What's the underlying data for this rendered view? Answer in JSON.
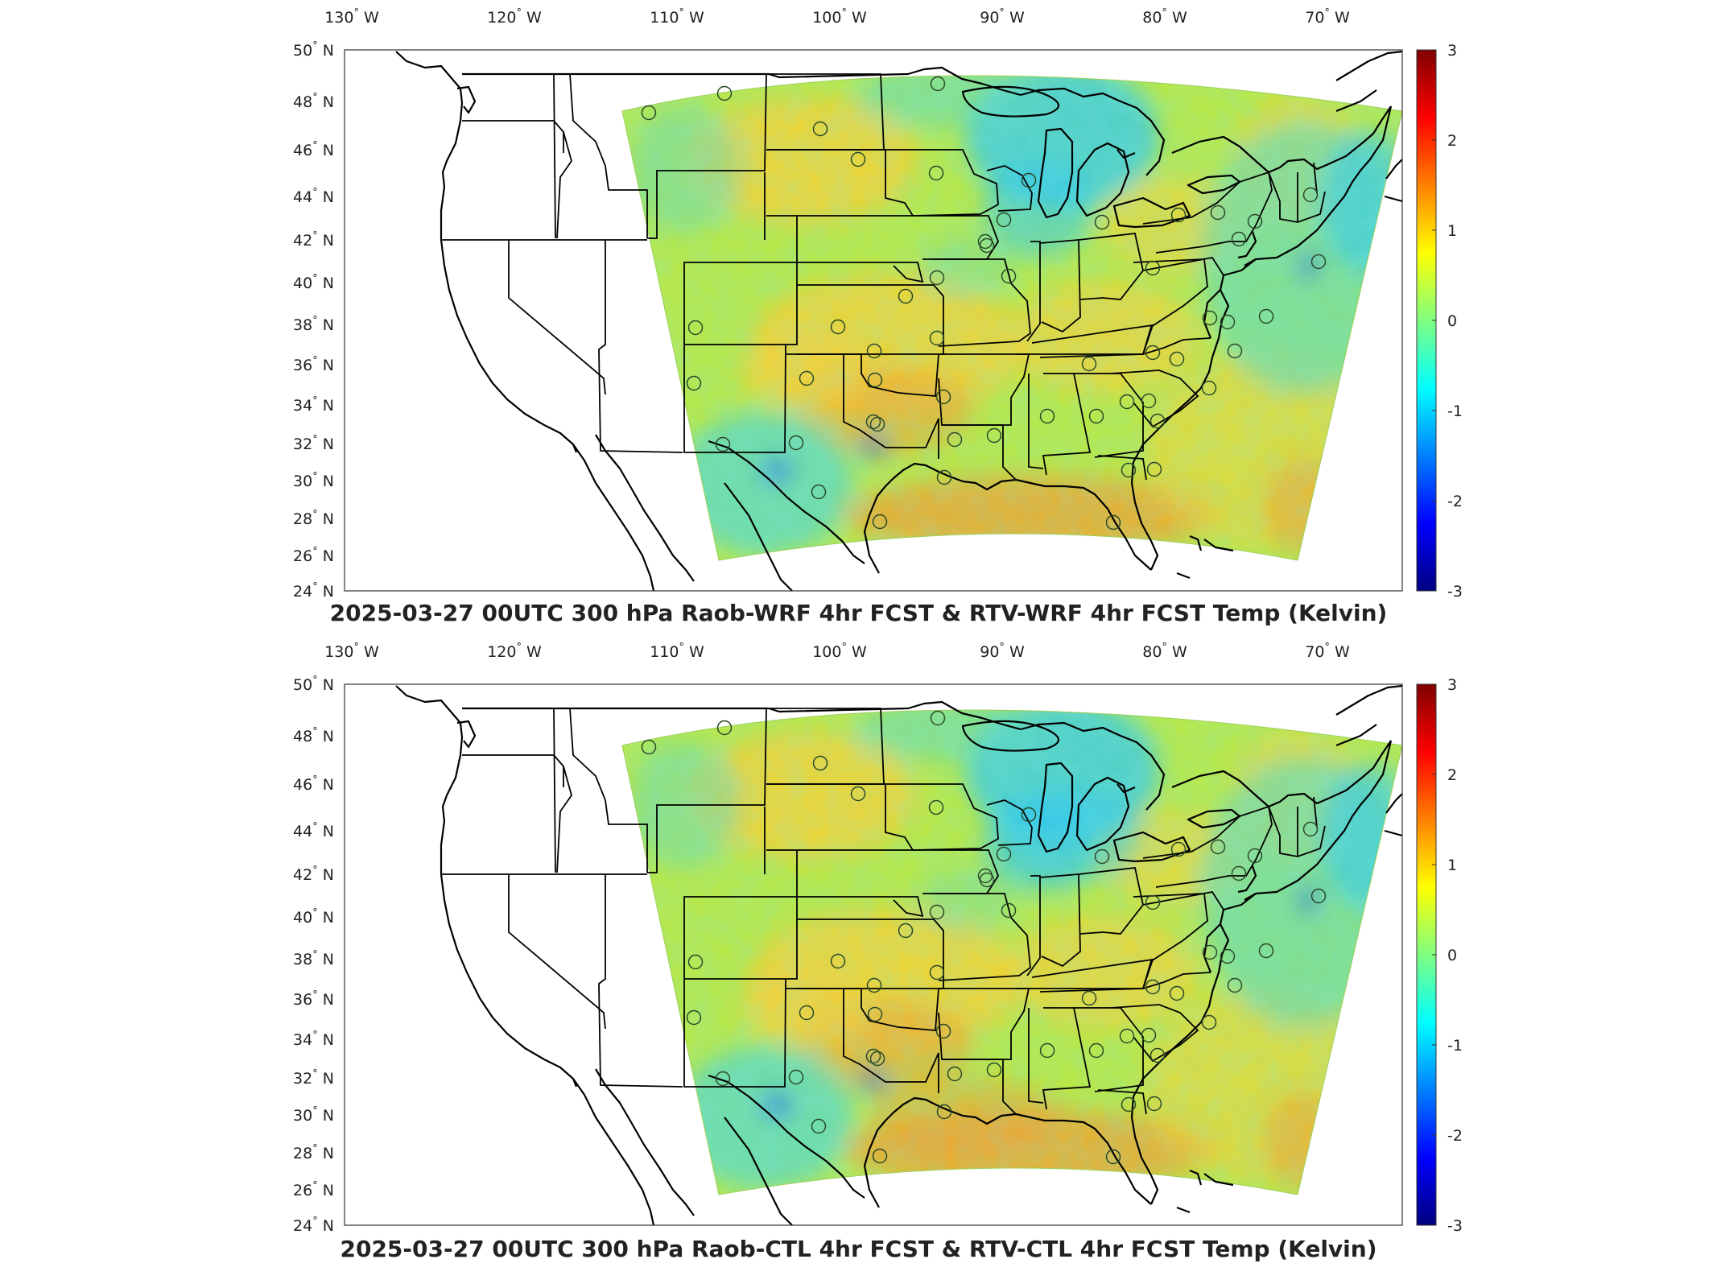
{
  "panels": [
    {
      "title": "2025-03-27 00UTC 300 hPa Raob-WRF 4hr FCST & RTV-WRF 4hr FCST Temp (Kelvin)"
    },
    {
      "title": "2025-03-27 00UTC 300 hPa Raob-CTL 4hr FCST & RTV-CTL 4hr FCST Temp (Kelvin)"
    }
  ],
  "longitude_labels": [
    {
      "num": "130",
      "dir": "W"
    },
    {
      "num": "120",
      "dir": "W"
    },
    {
      "num": "110",
      "dir": "W"
    },
    {
      "num": "100",
      "dir": "W"
    },
    {
      "num": "90",
      "dir": "W"
    },
    {
      "num": "80",
      "dir": "W"
    },
    {
      "num": "70",
      "dir": "W"
    }
  ],
  "latitude_labels": [
    {
      "num": "50",
      "dir": "N"
    },
    {
      "num": "48",
      "dir": "N"
    },
    {
      "num": "46",
      "dir": "N"
    },
    {
      "num": "44",
      "dir": "N"
    },
    {
      "num": "42",
      "dir": "N"
    },
    {
      "num": "40",
      "dir": "N"
    },
    {
      "num": "38",
      "dir": "N"
    },
    {
      "num": "36",
      "dir": "N"
    },
    {
      "num": "34",
      "dir": "N"
    },
    {
      "num": "32",
      "dir": "N"
    },
    {
      "num": "30",
      "dir": "N"
    },
    {
      "num": "28",
      "dir": "N"
    },
    {
      "num": "26",
      "dir": "N"
    },
    {
      "num": "24",
      "dir": "N"
    }
  ],
  "colorbar": {
    "ticks": [
      "3",
      "2",
      "1",
      "0",
      "-1",
      "-2",
      "-3"
    ],
    "colors": [
      "#800000",
      "#ff0000",
      "#ff8000",
      "#ffff00",
      "#80ff80",
      "#00ffff",
      "#0080ff",
      "#0000ff",
      "#000080"
    ]
  },
  "field_colors": {
    "base": "#b8e84a",
    "warm": "#f4d03a",
    "hot": "#f0a030",
    "cool": "#5ed8c0",
    "cold": "#30c8f0",
    "coldest": "#2060e0"
  }
}
